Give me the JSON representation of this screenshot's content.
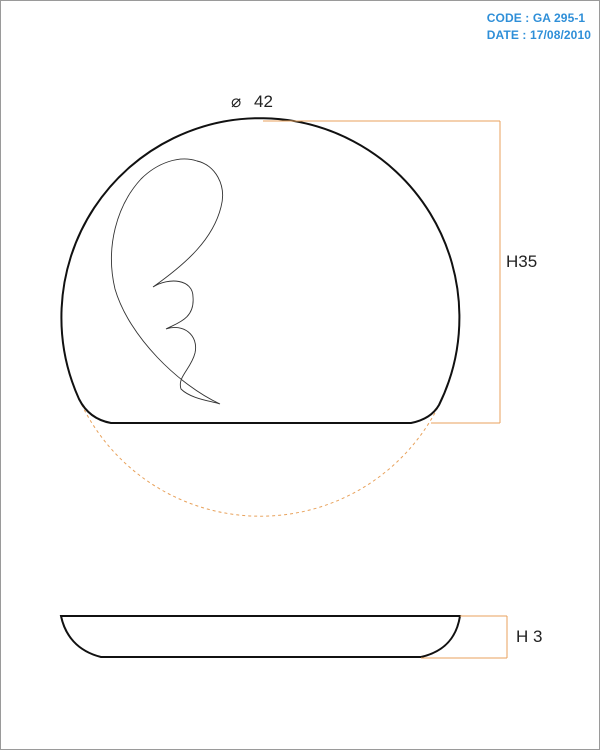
{
  "header": {
    "code_label": "CODE :",
    "code_value": "GA 295-1",
    "date_label": "DATE :",
    "date_value": "17/08/2010",
    "color": "#2f8fd8"
  },
  "top_view": {
    "diameter_symbol": "⌀",
    "diameter_value": "42",
    "height_label": "H35"
  },
  "side_view": {
    "height_label": "H 3"
  },
  "colors": {
    "outline": "#111111",
    "dimension": "#e8a25c",
    "construction": "#e8a25c"
  }
}
